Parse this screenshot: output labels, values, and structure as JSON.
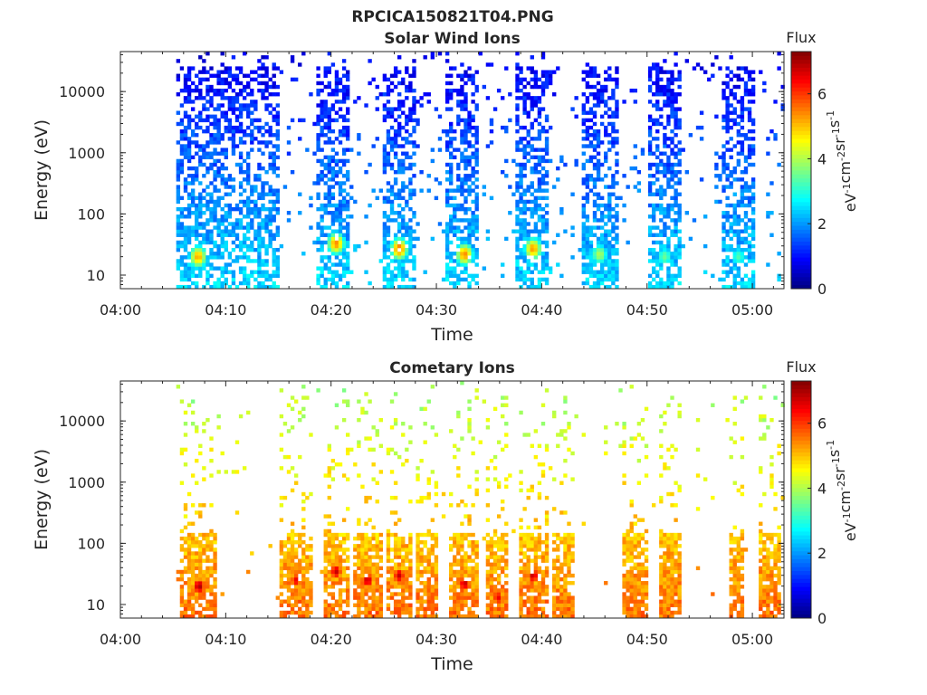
{
  "figure": {
    "title": "RPCICA150821T04.PNG"
  },
  "chart_data": [
    {
      "type": "heatmap",
      "title": "Solar Wind Ions",
      "xlabel": "Time",
      "ylabel": "Energy (eV)",
      "x_ticks": [
        "04:00",
        "04:10",
        "04:20",
        "04:30",
        "04:40",
        "04:50",
        "05:00"
      ],
      "xlim_minutes": [
        0,
        63
      ],
      "y_scale": "log",
      "ylim": [
        6,
        45000
      ],
      "y_ticks": [
        "10",
        "100",
        "1000",
        "10000"
      ],
      "colorbar": {
        "label": "Flux",
        "unit": "eV-1cm-2sr-1s-1",
        "range": [
          0,
          7.3
        ],
        "ticks": [
          "0",
          "2",
          "4",
          "6"
        ],
        "colormap": "jet"
      },
      "grid": false,
      "bursts_minutes": [
        {
          "start": 5.3,
          "end": 15.0,
          "peak_time": 7.2,
          "peak_energy": 20,
          "peak_flux": 5.2
        },
        {
          "start": 18.3,
          "end": 21.5,
          "peak_time": 20.3,
          "peak_energy": 33,
          "peak_flux": 5.4
        },
        {
          "start": 24.8,
          "end": 28.0,
          "peak_time": 26.3,
          "peak_energy": 27,
          "peak_flux": 5.6
        },
        {
          "start": 30.8,
          "end": 34.0,
          "peak_time": 32.5,
          "peak_energy": 22,
          "peak_flux": 5.4
        },
        {
          "start": 37.2,
          "end": 40.5,
          "peak_time": 39.0,
          "peak_energy": 27,
          "peak_flux": 5.3
        },
        {
          "start": 43.5,
          "end": 47.0,
          "peak_time": 45.3,
          "peak_energy": 22,
          "peak_flux": 4.0
        },
        {
          "start": 50.0,
          "end": 53.0,
          "peak_time": 51.5,
          "peak_energy": 20,
          "peak_flux": 3.5
        },
        {
          "start": 56.8,
          "end": 60.0,
          "peak_time": 58.5,
          "peak_energy": 20,
          "peak_flux": 3.3
        }
      ]
    },
    {
      "type": "heatmap",
      "title": "Cometary Ions",
      "xlabel": "Time",
      "ylabel": "Energy (eV)",
      "x_ticks": [
        "04:00",
        "04:10",
        "04:20",
        "04:30",
        "04:40",
        "04:50",
        "05:00"
      ],
      "xlim_minutes": [
        0,
        63
      ],
      "y_scale": "log",
      "ylim": [
        6,
        45000
      ],
      "y_ticks": [
        "10",
        "100",
        "1000",
        "10000"
      ],
      "colorbar": {
        "label": "Flux",
        "unit": "eV-1cm-2sr-1s-1",
        "range": [
          0,
          7.3
        ],
        "ticks": [
          "0",
          "2",
          "4",
          "6"
        ],
        "colormap": "jet"
      },
      "grid": false,
      "bursts_minutes": [
        {
          "start": 5.5,
          "end": 9.0,
          "peak_time": 7.3,
          "peak_energy": 20,
          "peak_flux": 7.0
        },
        {
          "start": 15.0,
          "end": 18.0,
          "peak_time": 16.5,
          "peak_energy": 25,
          "peak_flux": 6.5
        },
        {
          "start": 19.0,
          "end": 21.5,
          "peak_time": 20.3,
          "peak_energy": 35,
          "peak_flux": 6.8
        },
        {
          "start": 22.0,
          "end": 24.8,
          "peak_time": 23.3,
          "peak_energy": 25,
          "peak_flux": 6.8
        },
        {
          "start": 25.0,
          "end": 27.5,
          "peak_time": 26.3,
          "peak_energy": 30,
          "peak_flux": 6.8
        },
        {
          "start": 28.0,
          "end": 30.0,
          "peak_time": 29.3,
          "peak_energy": 12,
          "peak_flux": 6.0
        },
        {
          "start": 31.0,
          "end": 33.8,
          "peak_time": 32.5,
          "peak_energy": 22,
          "peak_flux": 6.8
        },
        {
          "start": 34.5,
          "end": 36.5,
          "peak_time": 35.7,
          "peak_energy": 13,
          "peak_flux": 6.5
        },
        {
          "start": 37.8,
          "end": 40.5,
          "peak_time": 39.0,
          "peak_energy": 30,
          "peak_flux": 6.8
        },
        {
          "start": 41.0,
          "end": 43.0,
          "peak_time": 42.3,
          "peak_energy": 8,
          "peak_flux": 5.0
        },
        {
          "start": 47.5,
          "end": 50.0,
          "peak_time": 48.8,
          "peak_energy": 20,
          "peak_flux": 5.5
        },
        {
          "start": 51.0,
          "end": 53.0,
          "peak_time": 51.8,
          "peak_energy": 20,
          "peak_flux": 4.5
        },
        {
          "start": 57.5,
          "end": 59.0,
          "peak_time": 58.0,
          "peak_energy": 20,
          "peak_flux": 4.5
        },
        {
          "start": 60.5,
          "end": 62.5,
          "peak_time": 61.5,
          "peak_energy": 15,
          "peak_flux": 6.0
        }
      ]
    }
  ]
}
